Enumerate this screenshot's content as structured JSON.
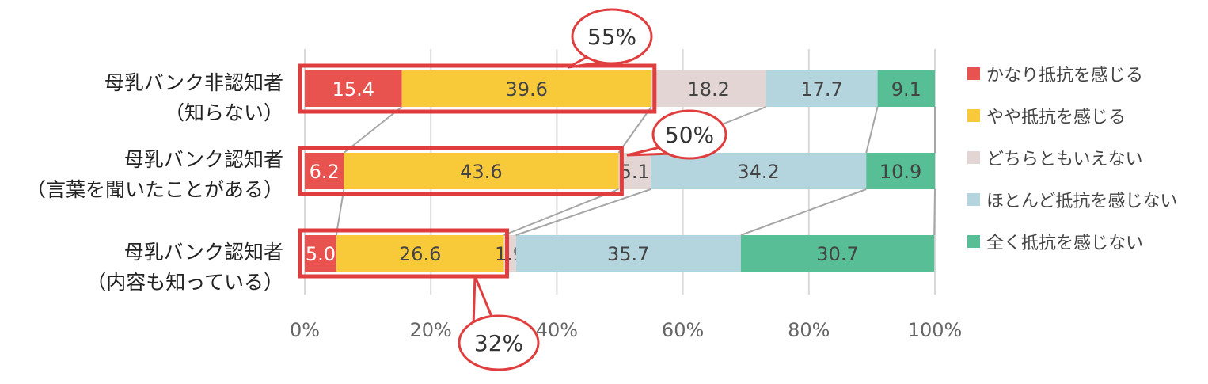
{
  "chart_data": {
    "type": "bar",
    "orientation": "horizontal",
    "stacked": "100%",
    "categories": [
      [
        "母乳バンク非認知者",
        "（知らない）"
      ],
      [
        "母乳バンク認知者",
        "（言葉を聞いたことがある）"
      ],
      [
        "母乳バンク認知者",
        "（内容も知っている）"
      ]
    ],
    "series": [
      {
        "name": "かなり抵抗を感じる",
        "color": "#e8524f",
        "values": [
          15.4,
          6.2,
          5.0
        ]
      },
      {
        "name": "やや抵抗を感じる",
        "color": "#f8ca3a",
        "values": [
          39.6,
          43.6,
          26.6
        ]
      },
      {
        "name": "どちらともいえない",
        "color": "#e2d5d3",
        "values": [
          18.2,
          5.1,
          1.9
        ]
      },
      {
        "name": "ほとんど抵抗を感じない",
        "color": "#b5d5de",
        "values": [
          17.7,
          34.2,
          35.7
        ]
      },
      {
        "name": "全く抵抗を感じない",
        "color": "#57be96",
        "values": [
          9.1,
          10.9,
          30.7
        ]
      }
    ],
    "xlim": [
      0,
      100
    ],
    "ticks": [
      "0%",
      "20%",
      "40%",
      "60%",
      "80%",
      "100%"
    ],
    "grid": true,
    "legend": "right",
    "callouts": [
      "55%",
      "50%",
      "32%"
    ],
    "highlight_color": "#e03e3e"
  }
}
